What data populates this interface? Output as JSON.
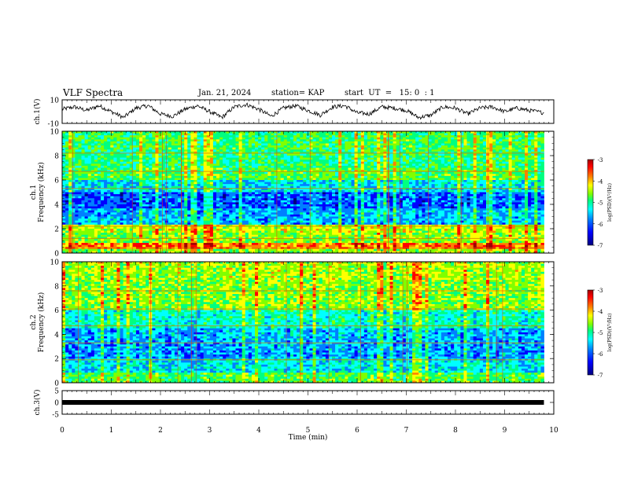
{
  "header": {
    "title": "VLF Spectra",
    "date": "Jan. 21, 2024",
    "station": "station= KAP",
    "start": "start  UT  =   15: 0  : 1"
  },
  "colors": {
    "waveform": "#000000",
    "colormap": [
      "#000080",
      "#0000ff",
      "#0080ff",
      "#00ffff",
      "#00ff80",
      "#80ff00",
      "#ffff00",
      "#ff8000",
      "#ff0000",
      "#a00000"
    ]
  },
  "chart_data": [
    {
      "type": "line",
      "panel": "ch1-waveform",
      "ylabel": "ch.1(V)",
      "ylim": [
        -10,
        10
      ],
      "yticks": [
        "10",
        "-10"
      ],
      "x": [
        0,
        0.25,
        0.5,
        0.75,
        1.0,
        1.25,
        1.5,
        1.75,
        2.0,
        2.25,
        2.5,
        2.75,
        3.0,
        3.25,
        3.5,
        3.75,
        4.0,
        4.25,
        4.5,
        4.75,
        5.0,
        5.25,
        5.5,
        5.75,
        6.0,
        6.25,
        6.5,
        6.75,
        7.0,
        7.25,
        7.5,
        7.75,
        8.0,
        8.25,
        8.5,
        8.75,
        9.0,
        9.25,
        9.5,
        9.8
      ],
      "y": [
        2,
        4,
        1,
        5,
        0,
        -5,
        3,
        5,
        -2,
        -4,
        2,
        5,
        0,
        -5,
        4,
        6,
        2,
        -4,
        3,
        5,
        1,
        -3,
        4,
        5,
        -1,
        -2,
        4,
        3,
        1,
        -5,
        -3,
        4,
        3,
        -2,
        3,
        4,
        0,
        3,
        1,
        -1
      ]
    },
    {
      "type": "heatmap",
      "panel": "ch1-spectrogram",
      "ylabel": "ch.1\nFrequency (kHz)",
      "ylim": [
        0,
        10
      ],
      "yticks": [
        "0",
        "2",
        "4",
        "6",
        "8",
        "10"
      ],
      "colorbar": {
        "label": "log(PSD)(V²/Hz)",
        "range": [
          -7,
          -3
        ],
        "ticks": [
          "-3",
          "-4",
          "-5",
          "-6",
          "-7"
        ]
      }
    },
    {
      "type": "heatmap",
      "panel": "ch2-spectrogram",
      "ylabel": "ch.2\nFrequency (kHz)",
      "ylim": [
        0,
        10
      ],
      "yticks": [
        "0",
        "2",
        "4",
        "6",
        "8",
        "10"
      ],
      "colorbar": {
        "label": "log(PSD)(V²/Hz)",
        "range": [
          -7,
          -3
        ],
        "ticks": [
          "-3",
          "-4",
          "-5",
          "-6",
          "-7"
        ]
      }
    },
    {
      "type": "line",
      "panel": "ch3-waveform",
      "ylabel": "ch.3(V)",
      "ylim": [
        -5,
        5
      ],
      "yticks": [
        "5",
        "0",
        "-5"
      ],
      "x": [
        0,
        9.8
      ],
      "y": [
        0,
        0
      ]
    }
  ],
  "xaxis": {
    "label": "Time (min)",
    "range": [
      0,
      10
    ],
    "ticks": [
      "0",
      "1",
      "2",
      "3",
      "4",
      "5",
      "6",
      "7",
      "8",
      "9",
      "10"
    ]
  }
}
